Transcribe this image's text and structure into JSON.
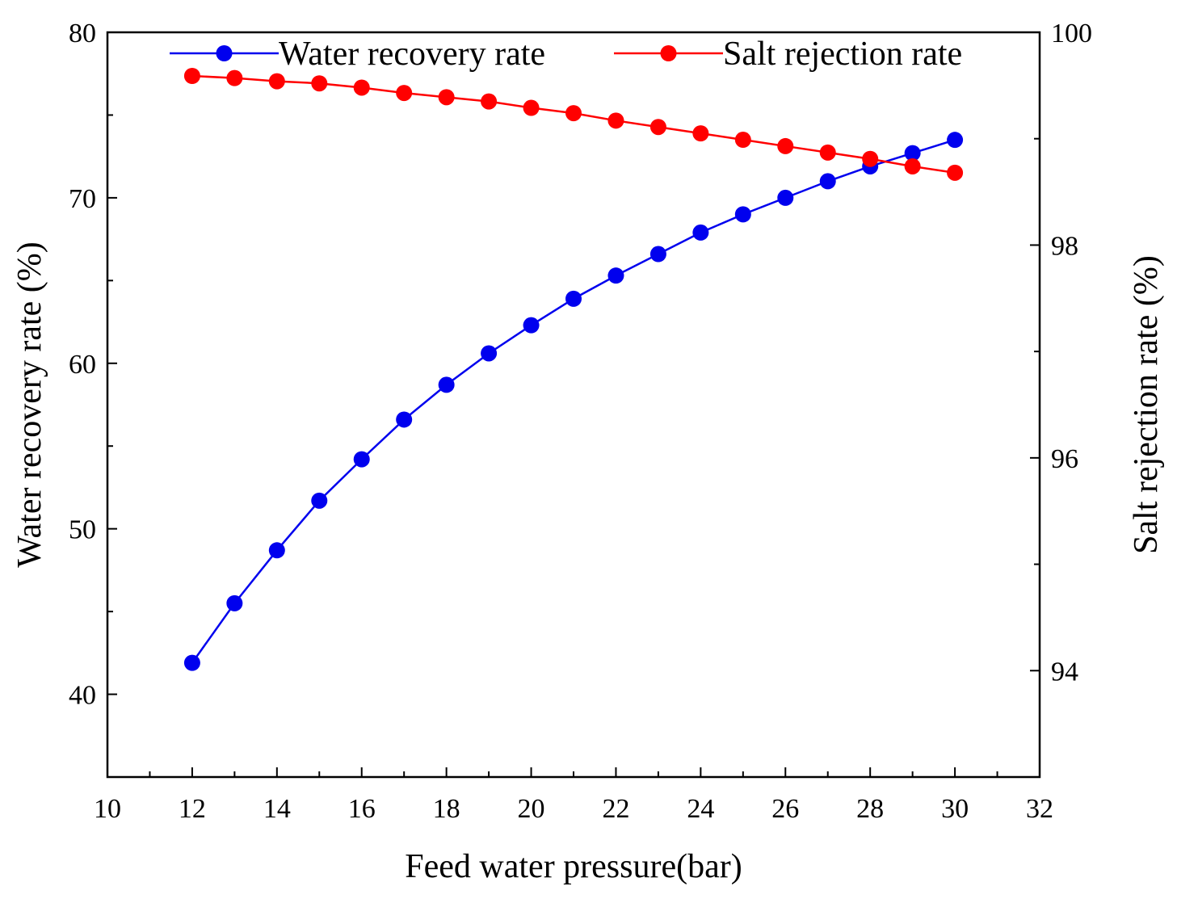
{
  "chart_data": {
    "type": "line",
    "title": "",
    "xlabel": "Feed water pressure(bar)",
    "xlim": [
      10,
      32
    ],
    "xticks": [
      10,
      12,
      14,
      16,
      18,
      20,
      22,
      24,
      26,
      28,
      30,
      32
    ],
    "x": [
      12,
      13,
      14,
      15,
      16,
      17,
      18,
      19,
      20,
      21,
      22,
      23,
      24,
      25,
      26,
      27,
      28,
      29,
      30
    ],
    "axes": {
      "left": {
        "label": "Water recovery rate (%)",
        "ylim": [
          35,
          80
        ],
        "ticks": [
          40,
          50,
          60,
          70,
          80
        ]
      },
      "right": {
        "label": "Salt rejection rate (%)",
        "ylim": [
          93,
          100
        ],
        "ticks": [
          94,
          96,
          98,
          100
        ]
      }
    },
    "series": [
      {
        "name": "Water recovery rate",
        "axis": "left",
        "color": "#0000ee",
        "values": [
          41.9,
          45.5,
          48.7,
          51.7,
          54.2,
          56.6,
          58.7,
          60.6,
          62.3,
          63.9,
          65.3,
          66.6,
          67.9,
          69.0,
          70.0,
          71.0,
          71.9,
          72.7,
          73.5
        ]
      },
      {
        "name": "Salt rejection rate",
        "axis": "right",
        "color": "#ff0000",
        "values": [
          99.59,
          99.57,
          99.54,
          99.52,
          99.48,
          99.43,
          99.39,
          99.35,
          99.29,
          99.24,
          99.17,
          99.11,
          99.05,
          98.99,
          98.93,
          98.87,
          98.81,
          98.74,
          98.68
        ]
      }
    ],
    "legend": "top",
    "grid": false
  }
}
